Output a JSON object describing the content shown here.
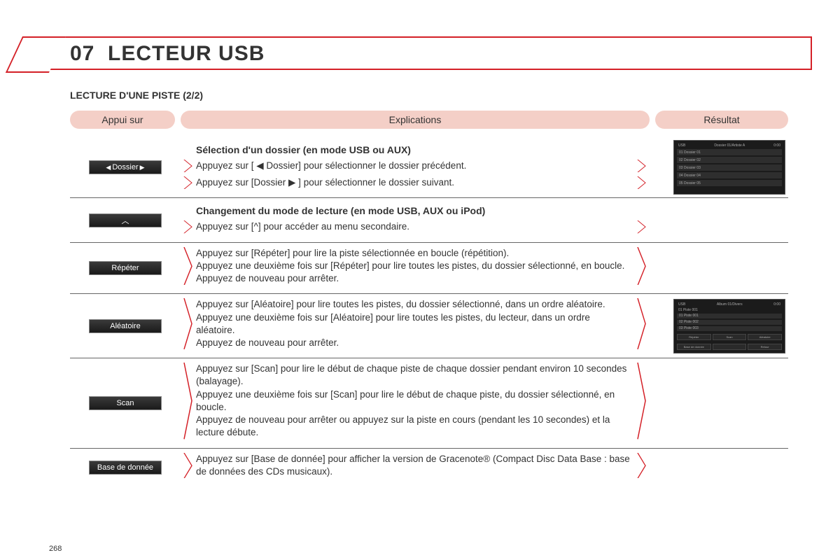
{
  "title": {
    "number": "07",
    "text": "LECTEUR USB"
  },
  "subtitle": "LECTURE D'UNE PISTE (2/2)",
  "headers": {
    "col1": "Appui sur",
    "col2": "Explications",
    "col3": "Résultat"
  },
  "colors": {
    "accent": "#d42027",
    "pill_bg": "#f4cfc7",
    "button_bg": "#2a2a2a",
    "border": "#666666"
  },
  "sections": [
    {
      "heading": "Sélection d'un dossier (en mode USB ou AUX)",
      "button": {
        "label": "Dossier",
        "left_arrow": "◀",
        "right_arrow": "▶"
      },
      "lines": [
        "Appuyez sur [ ◀ Dossier] pour sélectionner le dossier précédent.",
        "Appuyez sur [Dossier ▶ ] pour sélectionner le dossier suivant."
      ],
      "screenshot": {
        "head_left": "USB",
        "head_center": "Dossier 01/Artiste A",
        "head_right": "0:00",
        "rows": [
          "01  Dossier 01",
          "02  Dossier 02",
          "03  Dossier 03",
          "04  Dossier 04",
          "05  Dossier 05"
        ]
      }
    },
    {
      "heading": "Changement du mode de lecture (en mode USB, AUX ou iPod)",
      "button": {
        "label": "^",
        "is_caret": true
      },
      "lines": [
        "Appuyez sur [^] pour accéder au menu secondaire."
      ]
    },
    {
      "button": {
        "label": "Répéter"
      },
      "lines": [
        "Appuyez sur [Répéter] pour lire la piste sélectionnée en boucle (répétition).\nAppuyez une deuxième fois sur [Répéter] pour lire toutes les pistes, du dossier sélectionné, en boucle.\nAppuyez de nouveau pour arrêter."
      ]
    },
    {
      "button": {
        "label": "Aléatoire"
      },
      "lines": [
        "Appuyez sur [Aléatoire] pour lire toutes les pistes, du dossier sélectionné, dans un ordre aléatoire.\nAppuyez une deuxième fois sur [Aléatoire] pour lire toutes les pistes, du lecteur, dans un ordre aléatoire.\nAppuyez de nouveau pour arrêter."
      ],
      "screenshot": {
        "head_left": "USB",
        "head_center": "Album 01/Divers",
        "head_right": "0:00",
        "sub": "01 Piste 001",
        "rows": [
          "01  Piste 001",
          "02  Piste 002",
          "03  Piste 003"
        ],
        "buttons": [
          "Répéter",
          "Scan",
          "Aléatoire",
          "Base de donnée",
          "",
          "Retour"
        ]
      }
    },
    {
      "button": {
        "label": "Scan"
      },
      "lines": [
        "Appuyez sur [Scan] pour lire le début de chaque piste de chaque dossier pendant environ 10 secondes (balayage).\nAppuyez une deuxième fois sur [Scan] pour lire le début de chaque piste, du dossier sélectionné, en boucle.\nAppuyez de nouveau pour arrêter ou appuyez sur la piste en cours (pendant les 10 secondes) et la lecture débute."
      ]
    },
    {
      "button": {
        "label": "Base de donnée"
      },
      "lines": [
        "Appuyez sur [Base de donnée] pour afficher la version de Gracenote® (Compact Disc Data Base : base de données des CDs musicaux)."
      ],
      "last": true
    }
  ],
  "page_number": "268"
}
